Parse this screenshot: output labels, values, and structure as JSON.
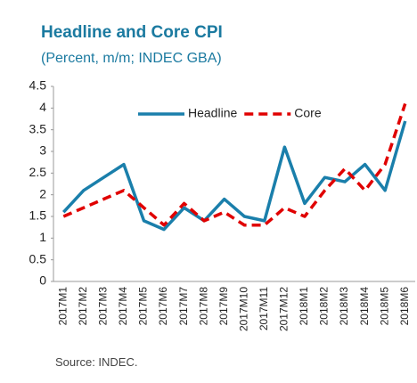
{
  "chart_data": {
    "type": "line",
    "title": "Headline and Core CPI",
    "subtitle": "(Percent,  m/m; INDEC GBA)",
    "source": "Source: INDEC.",
    "categories": [
      "2017M1",
      "2017M2",
      "2017M3",
      "2017M4",
      "2017M5",
      "2017M6",
      "2017M7",
      "2017M8",
      "2017M9",
      "2017M10",
      "2017M11",
      "2017M12",
      "2018M1",
      "2018M2",
      "2018M3",
      "2018M4",
      "2018M5",
      "2018M6"
    ],
    "series": [
      {
        "name": "Headline",
        "color": "#1a7fab",
        "dash": false,
        "values": [
          1.6,
          2.1,
          2.4,
          2.7,
          1.4,
          1.2,
          1.7,
          1.4,
          1.9,
          1.5,
          1.4,
          3.1,
          1.8,
          2.4,
          2.3,
          2.7,
          2.1,
          3.7
        ]
      },
      {
        "name": "Core",
        "color": "#e00000",
        "dash": true,
        "values": [
          1.5,
          1.7,
          1.9,
          2.1,
          1.7,
          1.3,
          1.8,
          1.4,
          1.6,
          1.3,
          1.3,
          1.7,
          1.5,
          2.1,
          2.6,
          2.1,
          2.7,
          4.1
        ]
      }
    ],
    "ylim": [
      0,
      4.5
    ],
    "yticks": [
      0,
      0.5,
      1,
      1.5,
      2,
      2.5,
      3,
      3.5,
      4,
      4.5
    ],
    "grid": false,
    "legend": "top"
  }
}
